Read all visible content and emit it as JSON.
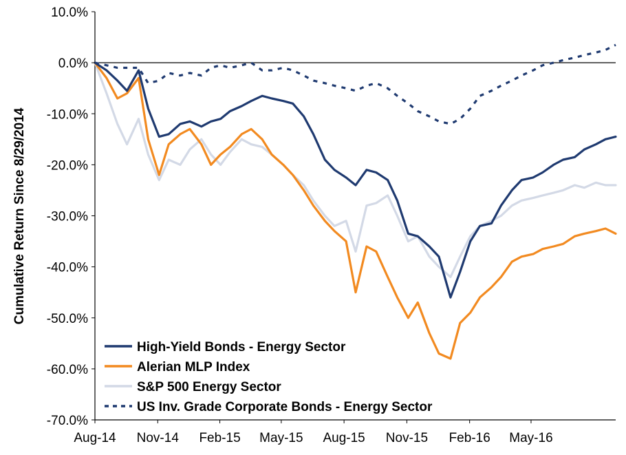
{
  "chart_data": {
    "type": "line",
    "title": "",
    "xlabel": "",
    "ylabel": "Cumulative Return Since 8/29/2014",
    "ylim": [
      -70,
      10
    ],
    "ytick_values": [
      10,
      0,
      -10,
      -20,
      -30,
      -40,
      -50,
      -60,
      -70
    ],
    "ytick_labels": [
      "10.0%",
      "0.0%",
      "-10.0%",
      "-20.0%",
      "-30.0%",
      "-40.0%",
      "-50.0%",
      "-60.0%",
      "-70.0%"
    ],
    "xlim": [
      "2014-08-29",
      "2016-09-30"
    ],
    "xtick_values": [
      "2014-08-29",
      "2014-11-29",
      "2015-02-28",
      "2015-05-29",
      "2015-08-29",
      "2015-11-29",
      "2016-02-29",
      "2016-05-29"
    ],
    "xtick_labels": [
      "Aug-14",
      "Nov-14",
      "Feb-15",
      "May-15",
      "Aug-15",
      "Nov-15",
      "Feb-16",
      "May-16"
    ],
    "grid": false,
    "legend_position": "bottom-left",
    "series": [
      {
        "name": "High-Yield Bonds - Energy Sector",
        "color": "#1f3a70",
        "style": "solid",
        "x": [
          "2014-08-29",
          "2014-09-15",
          "2014-10-01",
          "2014-10-15",
          "2014-11-01",
          "2014-11-15",
          "2014-12-01",
          "2014-12-15",
          "2015-01-01",
          "2015-01-15",
          "2015-02-01",
          "2015-02-15",
          "2015-03-01",
          "2015-03-15",
          "2015-04-01",
          "2015-04-15",
          "2015-05-01",
          "2015-05-15",
          "2015-06-01",
          "2015-06-15",
          "2015-07-01",
          "2015-07-15",
          "2015-08-01",
          "2015-08-15",
          "2015-09-01",
          "2015-09-15",
          "2015-10-01",
          "2015-10-15",
          "2015-11-01",
          "2015-11-15",
          "2015-12-01",
          "2015-12-15",
          "2016-01-01",
          "2016-01-15",
          "2016-02-01",
          "2016-02-15",
          "2016-03-01",
          "2016-03-15",
          "2016-04-01",
          "2016-04-15",
          "2016-05-01",
          "2016-05-15",
          "2016-06-01",
          "2016-06-15",
          "2016-07-01",
          "2016-07-15",
          "2016-08-01",
          "2016-08-15",
          "2016-09-01",
          "2016-09-15",
          "2016-09-30"
        ],
        "values": [
          0,
          -1.5,
          -3.5,
          -5.5,
          -1.5,
          -9.0,
          -14.5,
          -14.0,
          -12.0,
          -11.5,
          -12.5,
          -11.5,
          -11.0,
          -9.5,
          -8.5,
          -7.5,
          -6.5,
          -7.0,
          -7.5,
          -8.0,
          -10.5,
          -14.0,
          -19.0,
          -21.0,
          -22.5,
          -24.0,
          -21.0,
          -21.5,
          -23.0,
          -27.0,
          -33.5,
          -34.0,
          -36.0,
          -38.0,
          -46.0,
          -41.0,
          -35.0,
          -32.0,
          -31.5,
          -28.0,
          -25.0,
          -23.0,
          -22.5,
          -21.5,
          -20.0,
          -19.0,
          -18.5,
          -17.0,
          -16.0,
          -15.0,
          -14.5
        ]
      },
      {
        "name": "Alerian MLP Index",
        "color": "#f28a20",
        "style": "solid",
        "x": [
          "2014-08-29",
          "2014-09-15",
          "2014-10-01",
          "2014-10-15",
          "2014-11-01",
          "2014-11-15",
          "2014-12-01",
          "2014-12-15",
          "2015-01-01",
          "2015-01-15",
          "2015-02-01",
          "2015-02-15",
          "2015-03-01",
          "2015-03-15",
          "2015-04-01",
          "2015-04-15",
          "2015-05-01",
          "2015-05-15",
          "2015-06-01",
          "2015-06-15",
          "2015-07-01",
          "2015-07-15",
          "2015-08-01",
          "2015-08-15",
          "2015-09-01",
          "2015-09-15",
          "2015-10-01",
          "2015-10-15",
          "2015-11-01",
          "2015-11-15",
          "2015-12-01",
          "2015-12-15",
          "2016-01-01",
          "2016-01-15",
          "2016-02-01",
          "2016-02-15",
          "2016-03-01",
          "2016-03-15",
          "2016-04-01",
          "2016-04-15",
          "2016-05-01",
          "2016-05-15",
          "2016-06-01",
          "2016-06-15",
          "2016-07-01",
          "2016-07-15",
          "2016-08-01",
          "2016-08-15",
          "2016-09-01",
          "2016-09-15",
          "2016-09-30"
        ],
        "values": [
          0,
          -3.0,
          -7.0,
          -6.0,
          -3.0,
          -15.0,
          -22.0,
          -16.0,
          -14.0,
          -13.0,
          -16.0,
          -20.0,
          -18.0,
          -16.5,
          -14.0,
          -13.0,
          -15.0,
          -18.0,
          -20.0,
          -22.0,
          -25.0,
          -28.0,
          -31.0,
          -33.0,
          -35.0,
          -45.0,
          -36.0,
          -37.0,
          -42.0,
          -46.0,
          -50.0,
          -47.0,
          -53.0,
          -57.0,
          -58.0,
          -51.0,
          -49.0,
          -46.0,
          -44.0,
          -42.0,
          -39.0,
          -38.0,
          -37.5,
          -36.5,
          -36.0,
          -35.5,
          -34.0,
          -33.5,
          -33.0,
          -32.5,
          -33.5
        ]
      },
      {
        "name": "S&P 500 Energy Sector",
        "color": "#d3d9e6",
        "style": "solid",
        "x": [
          "2014-08-29",
          "2014-09-15",
          "2014-10-01",
          "2014-10-15",
          "2014-11-01",
          "2014-11-15",
          "2014-12-01",
          "2014-12-15",
          "2015-01-01",
          "2015-01-15",
          "2015-02-01",
          "2015-02-15",
          "2015-03-01",
          "2015-03-15",
          "2015-04-01",
          "2015-04-15",
          "2015-05-01",
          "2015-05-15",
          "2015-06-01",
          "2015-06-15",
          "2015-07-01",
          "2015-07-15",
          "2015-08-01",
          "2015-08-15",
          "2015-09-01",
          "2015-09-15",
          "2015-10-01",
          "2015-10-15",
          "2015-11-01",
          "2015-11-15",
          "2015-12-01",
          "2015-12-15",
          "2016-01-01",
          "2016-01-15",
          "2016-02-01",
          "2016-02-15",
          "2016-03-01",
          "2016-03-15",
          "2016-04-01",
          "2016-04-15",
          "2016-05-01",
          "2016-05-15",
          "2016-06-01",
          "2016-06-15",
          "2016-07-01",
          "2016-07-15",
          "2016-08-01",
          "2016-08-15",
          "2016-09-01",
          "2016-09-15",
          "2016-09-30"
        ],
        "values": [
          0,
          -6.0,
          -12.0,
          -16.0,
          -11.0,
          -18.0,
          -23.0,
          -19.0,
          -20.0,
          -17.0,
          -15.0,
          -18.0,
          -20.0,
          -17.5,
          -15.0,
          -16.0,
          -16.5,
          -18.0,
          -20.0,
          -22.0,
          -24.0,
          -27.0,
          -30.0,
          -32.0,
          -31.0,
          -37.0,
          -28.0,
          -27.5,
          -26.0,
          -30.0,
          -35.0,
          -34.0,
          -38.0,
          -40.0,
          -42.0,
          -38.0,
          -34.0,
          -32.0,
          -31.0,
          -30.0,
          -28.0,
          -27.0,
          -26.5,
          -26.0,
          -25.5,
          -25.0,
          -24.0,
          -24.5,
          -23.5,
          -24.0,
          -24.0
        ]
      },
      {
        "name": "US Inv. Grade Corporate Bonds - Energy Sector",
        "color": "#1f3a70",
        "style": "dashed",
        "x": [
          "2014-08-29",
          "2014-09-15",
          "2014-10-01",
          "2014-10-15",
          "2014-11-01",
          "2014-11-15",
          "2014-12-01",
          "2014-12-15",
          "2015-01-01",
          "2015-01-15",
          "2015-02-01",
          "2015-02-15",
          "2015-03-01",
          "2015-03-15",
          "2015-04-01",
          "2015-04-15",
          "2015-05-01",
          "2015-05-15",
          "2015-06-01",
          "2015-06-15",
          "2015-07-01",
          "2015-07-15",
          "2015-08-01",
          "2015-08-15",
          "2015-09-01",
          "2015-09-15",
          "2015-10-01",
          "2015-10-15",
          "2015-11-01",
          "2015-11-15",
          "2015-12-01",
          "2015-12-15",
          "2016-01-01",
          "2016-01-15",
          "2016-02-01",
          "2016-02-15",
          "2016-03-01",
          "2016-03-15",
          "2016-04-01",
          "2016-04-15",
          "2016-05-01",
          "2016-05-15",
          "2016-06-01",
          "2016-06-15",
          "2016-07-01",
          "2016-07-15",
          "2016-08-01",
          "2016-08-15",
          "2016-09-01",
          "2016-09-15",
          "2016-09-30"
        ],
        "values": [
          0,
          -0.5,
          -1.0,
          -1.0,
          -1.0,
          -4.0,
          -3.5,
          -2.0,
          -2.5,
          -2.0,
          -2.5,
          -1.0,
          -0.5,
          -1.0,
          -0.5,
          0.0,
          -1.5,
          -1.5,
          -1.0,
          -1.5,
          -2.5,
          -3.5,
          -4.0,
          -4.5,
          -5.0,
          -5.5,
          -4.5,
          -4.0,
          -5.0,
          -6.5,
          -8.0,
          -9.5,
          -10.5,
          -11.5,
          -12.0,
          -11.0,
          -9.0,
          -6.5,
          -5.5,
          -4.5,
          -3.5,
          -2.5,
          -1.5,
          -0.5,
          0.0,
          0.5,
          1.0,
          1.5,
          2.0,
          2.5,
          3.5
        ]
      }
    ]
  }
}
